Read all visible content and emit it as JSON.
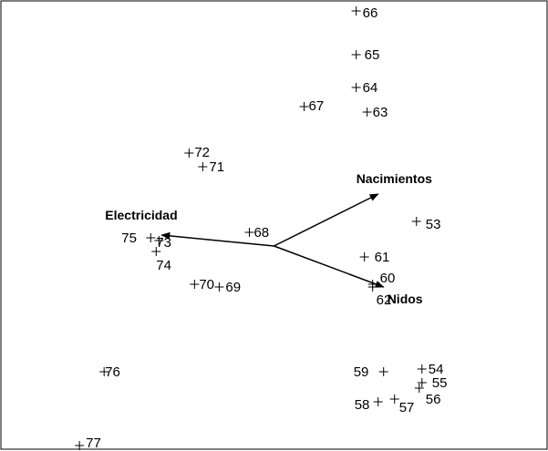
{
  "chart_data": {
    "type": "scatter",
    "title": "",
    "xlabel": "",
    "ylabel": "",
    "grid": false,
    "xlim": [
      -1.0,
      1.0
    ],
    "ylim": [
      -0.75,
      0.9
    ],
    "marker": "+",
    "points": [
      {
        "label": "53",
        "x": 0.52,
        "y": 0.09
      },
      {
        "label": "54",
        "x": 0.54,
        "y": -0.45
      },
      {
        "label": "55",
        "x": 0.54,
        "y": -0.5
      },
      {
        "label": "56",
        "x": 0.53,
        "y": -0.52
      },
      {
        "label": "57",
        "x": 0.44,
        "y": -0.56
      },
      {
        "label": "58",
        "x": 0.38,
        "y": -0.57
      },
      {
        "label": "59",
        "x": 0.4,
        "y": -0.46
      },
      {
        "label": "60",
        "x": 0.36,
        "y": -0.14
      },
      {
        "label": "61",
        "x": 0.33,
        "y": -0.04
      },
      {
        "label": "62",
        "x": 0.36,
        "y": -0.15
      },
      {
        "label": "63",
        "x": 0.34,
        "y": 0.49
      },
      {
        "label": "64",
        "x": 0.3,
        "y": 0.58
      },
      {
        "label": "65",
        "x": 0.3,
        "y": 0.7
      },
      {
        "label": "66",
        "x": 0.3,
        "y": 0.86
      },
      {
        "label": "67",
        "x": 0.11,
        "y": 0.51
      },
      {
        "label": "68",
        "x": -0.09,
        "y": 0.05
      },
      {
        "label": "69",
        "x": -0.2,
        "y": -0.15
      },
      {
        "label": "70",
        "x": -0.29,
        "y": -0.14
      },
      {
        "label": "71",
        "x": -0.26,
        "y": 0.29
      },
      {
        "label": "72",
        "x": -0.31,
        "y": 0.34
      },
      {
        "label": "73",
        "x": -0.42,
        "y": 0.02
      },
      {
        "label": "74",
        "x": -0.43,
        "y": -0.02
      },
      {
        "label": "75",
        "x": -0.45,
        "y": 0.03
      },
      {
        "label": "76",
        "x": -0.62,
        "y": -0.46
      },
      {
        "label": "77",
        "x": -0.71,
        "y": -0.73
      }
    ],
    "vectors": [
      {
        "name": "Nacimientos",
        "x": 0.38,
        "y": 0.19
      },
      {
        "name": "Electricidad",
        "x": -0.41,
        "y": 0.04
      },
      {
        "name": "Nidos",
        "x": 0.4,
        "y": -0.15
      }
    ]
  }
}
